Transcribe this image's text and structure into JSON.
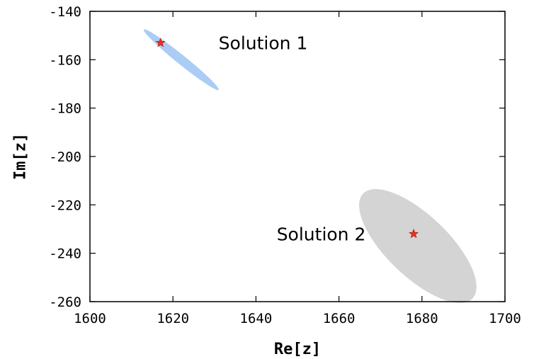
{
  "chart_data": {
    "type": "scatter",
    "title": "",
    "xlabel": "Re[z]",
    "ylabel": "Im[z]",
    "xlim": [
      1600,
      1700
    ],
    "ylim": [
      -260,
      -140
    ],
    "xticks": [
      "1600",
      "1620",
      "1640",
      "1660",
      "1680",
      "1700"
    ],
    "yticks": [
      "-140",
      "-160",
      "-180",
      "-200",
      "-220",
      "-240",
      "-260"
    ],
    "grid": false,
    "series": [
      {
        "marker": "star",
        "color": "#e8321e",
        "x": 1617,
        "y": -153,
        "region": {
          "shape": "ellipse",
          "color": "#aaccf5",
          "center": [
            1622,
            -160
          ],
          "semi_axis_major": [
            9,
            -12.5
          ],
          "semi_axis_minor": [
            0.9,
            1.2
          ]
        }
      },
      {
        "marker": "star",
        "color": "#e8321e",
        "x": 1678,
        "y": -232,
        "region": {
          "shape": "ellipse",
          "color": "#d4d4d4",
          "center": [
            1679,
            -237
          ],
          "semi_axis_major": [
            12,
            -23
          ],
          "semi_axis_minor": [
            7.5,
            5
          ]
        }
      }
    ],
    "annotations": [
      {
        "text": "Solution 1",
        "x": 1631,
        "y": -153
      },
      {
        "text": "Solution 2",
        "x": 1645,
        "y": -232
      }
    ]
  }
}
